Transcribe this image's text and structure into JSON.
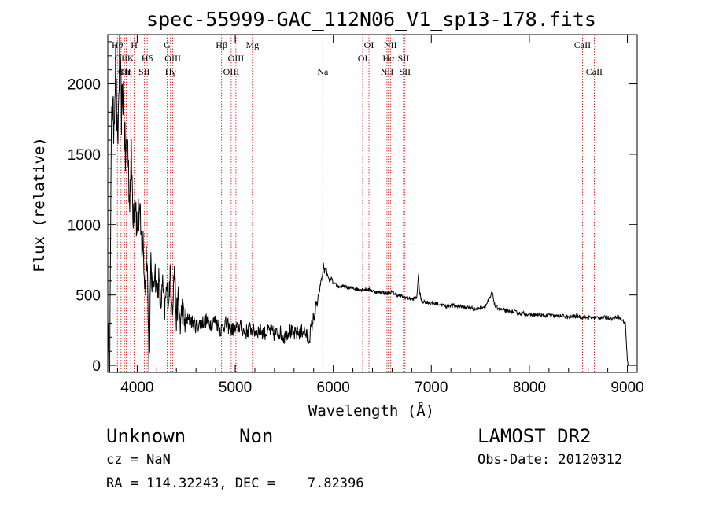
{
  "chart_data": {
    "type": "line",
    "title": "spec-55999-GAC_112N06_V1_sp13-178.fits",
    "xlabel": "Wavelength (Å)",
    "ylabel": "Flux (relative)",
    "xlim": [
      3700,
      9100
    ],
    "ylim": [
      -50,
      2350
    ],
    "xticks": [
      4000,
      5000,
      6000,
      7000,
      8000,
      9000
    ],
    "yticks": [
      0,
      500,
      1000,
      1500,
      2000
    ],
    "grid": false,
    "series": [
      {
        "color": "#000000",
        "x": [
          3700,
          3720,
          3740,
          3760,
          3780,
          3800,
          3820,
          3840,
          3860,
          3880,
          3900,
          3920,
          3940,
          3960,
          3980,
          4000,
          4020,
          4040,
          4060,
          4080,
          4100,
          4120,
          4140,
          4160,
          4180,
          4200,
          4220,
          4240,
          4260,
          4280,
          4300,
          4320,
          4340,
          4360,
          4380,
          4400,
          4420,
          4440,
          4460,
          4480,
          4500,
          4550,
          4600,
          4650,
          4700,
          4750,
          4800,
          4850,
          4900,
          4950,
          5000,
          5050,
          5100,
          5150,
          5200,
          5250,
          5300,
          5350,
          5400,
          5450,
          5500,
          5550,
          5600,
          5650,
          5700,
          5750,
          5780,
          5800,
          5820,
          5850,
          5870,
          5890,
          5900,
          5910,
          5920,
          5940,
          5960,
          5980,
          6000,
          6050,
          6100,
          6150,
          6200,
          6250,
          6300,
          6350,
          6400,
          6450,
          6500,
          6550,
          6600,
          6650,
          6700,
          6750,
          6800,
          6850,
          6870,
          6880,
          6900,
          6950,
          7000,
          7050,
          7100,
          7150,
          7200,
          7250,
          7300,
          7350,
          7400,
          7450,
          7500,
          7550,
          7600,
          7620,
          7650,
          7700,
          7750,
          7800,
          7850,
          7900,
          7950,
          8000,
          8050,
          8100,
          8150,
          8200,
          8250,
          8300,
          8350,
          8400,
          8450,
          8500,
          8550,
          8600,
          8650,
          8700,
          8750,
          8800,
          8850,
          8900,
          8950,
          8980,
          9000,
          9010
        ],
        "y": [
          200,
          30,
          1900,
          1700,
          2150,
          1500,
          2200,
          1800,
          1950,
          1450,
          1650,
          1200,
          1450,
          1100,
          1250,
          950,
          1100,
          880,
          850,
          560,
          900,
          -10,
          650,
          560,
          700,
          500,
          600,
          420,
          560,
          380,
          540,
          480,
          650,
          430,
          700,
          330,
          480,
          280,
          420,
          300,
          320,
          320,
          280,
          300,
          320,
          300,
          320,
          250,
          300,
          260,
          250,
          280,
          230,
          260,
          240,
          250,
          230,
          250,
          220,
          240,
          200,
          250,
          220,
          230,
          250,
          180,
          280,
          340,
          400,
          480,
          580,
          640,
          720,
          660,
          700,
          640,
          600,
          620,
          580,
          560,
          560,
          550,
          550,
          540,
          540,
          540,
          530,
          520,
          520,
          510,
          520,
          500,
          490,
          480,
          470,
          480,
          640,
          520,
          460,
          450,
          440,
          440,
          430,
          420,
          430,
          420,
          420,
          410,
          410,
          400,
          410,
          420,
          480,
          520,
          420,
          400,
          390,
          380,
          380,
          370,
          370,
          360,
          360,
          360,
          350,
          360,
          350,
          350,
          350,
          340,
          350,
          350,
          340,
          340,
          340,
          340,
          340,
          340,
          330,
          350,
          320,
          300,
          30,
          0
        ]
      }
    ],
    "lines": [
      {
        "x": 3798,
        "labels": [
          "Hθ"
        ],
        "row": 0
      },
      {
        "x": 3835,
        "labels": [
          "OII"
        ],
        "row": 1
      },
      {
        "x": 3870,
        "labels": [
          "OII"
        ],
        "row": 2
      },
      {
        "x": 3889,
        "labels": [
          "Hη"
        ],
        "row": 2
      },
      {
        "x": 3934,
        "labels": [
          "K"
        ],
        "row": 1
      },
      {
        "x": 3969,
        "labels": [
          "H"
        ],
        "row": 0
      },
      {
        "x": 4072,
        "labels": [
          "SII"
        ],
        "row": 2
      },
      {
        "x": 4102,
        "labels": [
          "Hδ"
        ],
        "row": 1
      },
      {
        "x": 4305,
        "labels": [
          "G"
        ],
        "row": 0
      },
      {
        "x": 4340,
        "labels": [
          "Hγ"
        ],
        "row": 2
      },
      {
        "x": 4363,
        "labels": [
          "OIII"
        ],
        "row": 1
      },
      {
        "x": 4861,
        "labels": [
          "Hβ"
        ],
        "row": 0
      },
      {
        "x": 4959,
        "labels": [
          "OIII"
        ],
        "row": 2
      },
      {
        "x": 5007,
        "labels": [
          "OIII"
        ],
        "row": 1
      },
      {
        "x": 5175,
        "labels": [
          "Mg"
        ],
        "row": 0
      },
      {
        "x": 5893,
        "labels": [
          "Na"
        ],
        "row": 2
      },
      {
        "x": 6300,
        "labels": [
          "OI"
        ],
        "row": 1
      },
      {
        "x": 6364,
        "labels": [
          "OI"
        ],
        "row": 0
      },
      {
        "x": 6548,
        "labels": [
          "NII"
        ],
        "row": 2
      },
      {
        "x": 6563,
        "labels": [
          "Hα"
        ],
        "row": 1
      },
      {
        "x": 6583,
        "labels": [
          "NII"
        ],
        "row": 0
      },
      {
        "x": 6716,
        "labels": [
          "SII"
        ],
        "row": 1
      },
      {
        "x": 6731,
        "labels": [
          "SII"
        ],
        "row": 2
      },
      {
        "x": 8542,
        "labels": [
          "CaII"
        ],
        "row": 0
      },
      {
        "x": 8662,
        "labels": [
          "CaII"
        ],
        "row": 2
      }
    ],
    "line_color": "#cc0000"
  },
  "info": {
    "class_label": "Unknown",
    "subclass_label": "Non",
    "survey": "LAMOST DR2",
    "cz": "cz = NaN",
    "obs_date": "Obs-Date: 20120312",
    "coords": "RA = 114.32243, DEC =    7.82396"
  }
}
